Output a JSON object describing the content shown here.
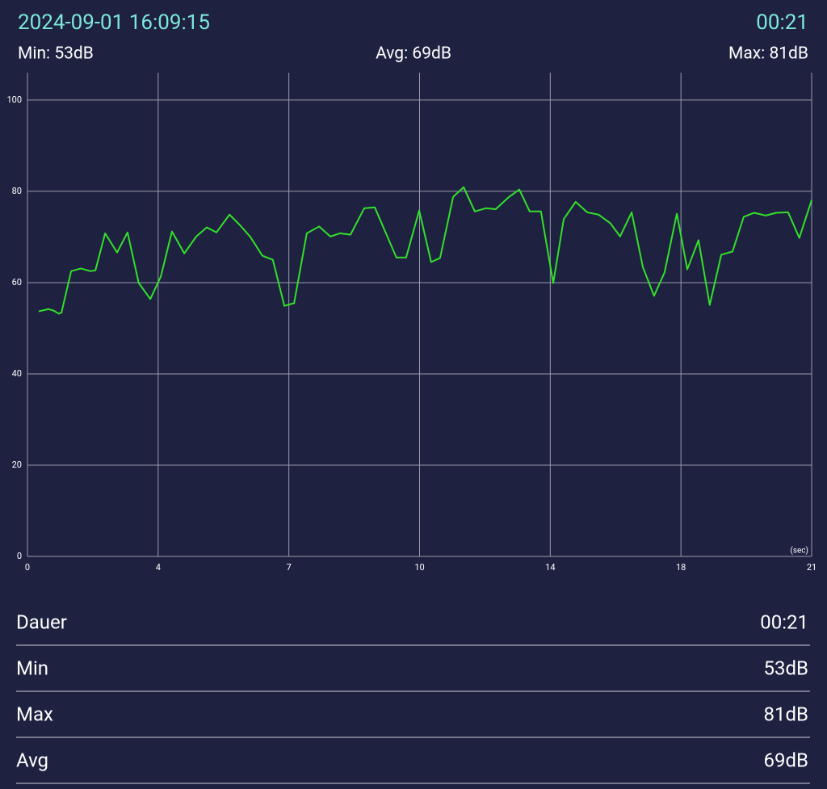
{
  "header": {
    "datetime": "2024-09-01 16:09:15",
    "elapsed": "00:21",
    "min": "Min: 53dB",
    "avg": "Avg: 69dB",
    "max": "Max: 81dB"
  },
  "chart_data": {
    "type": "line",
    "x_unit": "(sec)",
    "x": [
      0.3,
      0.56,
      0.69,
      0.84,
      0.91,
      1.17,
      1.43,
      1.69,
      1.82,
      2.08,
      2.4,
      2.68,
      2.98,
      3.29,
      3.57,
      3.87,
      4.2,
      4.52,
      4.8,
      5.06,
      5.41,
      5.69,
      5.97,
      6.29,
      6.57,
      6.88,
      7.14,
      7.48,
      7.81,
      8.11,
      8.37,
      8.65,
      9.02,
      9.3,
      9.88,
      10.14,
      10.49,
      10.81,
      11.05,
      11.4,
      11.68,
      11.98,
      12.28,
      12.54,
      12.87,
      13.17,
      13.45,
      13.75,
      14.08,
      14.36,
      14.68,
      14.99,
      15.29,
      15.61,
      15.87,
      16.18,
      16.48,
      16.78,
      17.06,
      17.39,
      17.67,
      17.97,
      18.27,
      18.58,
      18.88,
      19.18,
      19.46,
      19.77,
      20.05,
      20.37,
      20.67,
      21.0
    ],
    "series": [
      {
        "color": "#33e02a",
        "values": [
          53.7,
          54.2,
          53.9,
          53.2,
          53.4,
          62.5,
          63.1,
          62.5,
          62.7,
          70.8,
          66.6,
          71.0,
          59.9,
          56.4,
          61.3,
          71.2,
          66.4,
          70.1,
          72.1,
          71.0,
          74.9,
          72.6,
          70.0,
          65.9,
          65.0,
          54.9,
          55.5,
          70.8,
          72.3,
          70.1,
          70.8,
          70.5,
          76.3,
          76.5,
          65.5,
          65.5,
          75.8,
          64.5,
          65.4,
          78.8,
          80.9,
          75.6,
          76.3,
          76.1,
          78.6,
          80.4,
          75.6,
          75.6,
          59.9,
          73.9,
          77.7,
          75.4,
          74.9,
          73.0,
          70.1,
          75.4,
          63.4,
          57.1,
          62.2,
          75.1,
          62.9,
          69.3,
          55.1,
          66.1,
          66.8,
          74.4,
          75.3,
          74.7,
          75.3,
          75.4,
          69.8,
          78.1
        ]
      }
    ],
    "xlim": [
      0,
      21
    ],
    "ylim": [
      0,
      106
    ],
    "xticks": [
      0,
      {
        "value": 3.5,
        "label": "4"
      },
      7,
      {
        "value": 10.5,
        "label": "10"
      },
      14,
      {
        "value": 17.5,
        "label": "18"
      },
      21
    ],
    "yticks": [
      0,
      20,
      40,
      60,
      80,
      100
    ],
    "grid": true
  },
  "stats": {
    "rows": [
      [
        "Dauer",
        "00:21"
      ],
      [
        "Min",
        "53dB"
      ],
      [
        "Max",
        "81dB"
      ],
      [
        "Avg",
        "69dB"
      ]
    ]
  }
}
